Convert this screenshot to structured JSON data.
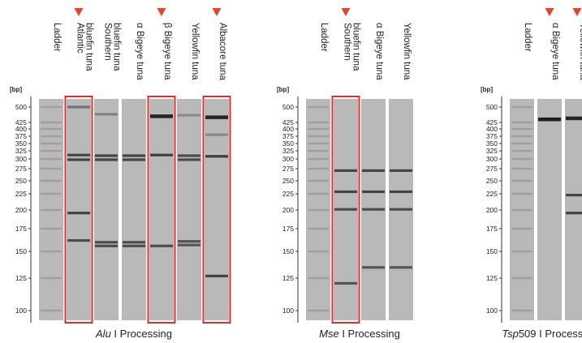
{
  "unit_label": "[bp]",
  "marker_color": "#e8432a",
  "highlight_color": "#e02d2d",
  "gel_color": "#b9b9b9",
  "band_color": "#1e1e1e",
  "ladder": [
    100,
    125,
    150,
    175,
    200,
    225,
    250,
    275,
    300,
    325,
    350,
    375,
    400,
    425,
    500
  ],
  "ticks": [
    {
      "label": "500",
      "bp": 500
    },
    {
      "label": "425",
      "bp": 425
    },
    {
      "label": "400",
      "bp": 400
    },
    {
      "label": "375",
      "bp": 375
    },
    {
      "label": "350",
      "bp": 350
    },
    {
      "label": "325",
      "bp": 325
    },
    {
      "label": "300",
      "bp": 300
    },
    {
      "label": "275",
      "bp": 275
    },
    {
      "label": "250",
      "bp": 250
    },
    {
      "label": "225",
      "bp": 225
    },
    {
      "label": "200",
      "bp": 200
    },
    {
      "label": "175",
      "bp": 175
    },
    {
      "label": "150",
      "bp": 150
    },
    {
      "label": "125",
      "bp": 125
    },
    {
      "label": "100",
      "bp": 100
    }
  ],
  "panels": [
    {
      "caption_enzyme": "Alu",
      "caption_rest": " I Processing",
      "lanes": [
        {
          "label_lines": [
            "Ladder"
          ],
          "ladder": true,
          "highlight": false,
          "marker": false,
          "bands": []
        },
        {
          "label_lines": [
            "Atlantic",
            "bluefin tuna"
          ],
          "ladder": false,
          "highlight": true,
          "marker": true,
          "bands": [
            {
              "bp": 500,
              "i": 0.45
            },
            {
              "bp": 312,
              "i": 0.75
            },
            {
              "bp": 298,
              "i": 0.75
            },
            {
              "bp": 196,
              "i": 0.75
            },
            {
              "bp": 162,
              "i": 0.7
            }
          ]
        },
        {
          "label_lines": [
            "Southern",
            "bluefin tuna"
          ],
          "ladder": false,
          "highlight": false,
          "marker": false,
          "bands": [
            {
              "bp": 465,
              "i": 0.35
            },
            {
              "bp": 310,
              "i": 0.75
            },
            {
              "bp": 298,
              "i": 0.75
            },
            {
              "bp": 160,
              "i": 0.7
            },
            {
              "bp": 156,
              "i": 0.7
            }
          ]
        },
        {
          "label_lines": [
            "α Bigeye tuna"
          ],
          "ladder": false,
          "highlight": false,
          "marker": false,
          "bands": [
            {
              "bp": 310,
              "i": 0.75
            },
            {
              "bp": 298,
              "i": 0.75
            },
            {
              "bp": 160,
              "i": 0.7
            },
            {
              "bp": 156,
              "i": 0.7
            }
          ]
        },
        {
          "label_lines": [
            "β Bigeye tuna"
          ],
          "ladder": false,
          "highlight": true,
          "marker": true,
          "bands": [
            {
              "bp": 455,
              "i": 0.95
            },
            {
              "bp": 312,
              "i": 0.8
            },
            {
              "bp": 156,
              "i": 0.7
            }
          ]
        },
        {
          "label_lines": [
            "Yellowfin tuna"
          ],
          "ladder": false,
          "highlight": false,
          "marker": false,
          "bands": [
            {
              "bp": 460,
              "i": 0.3
            },
            {
              "bp": 310,
              "i": 0.7
            },
            {
              "bp": 298,
              "i": 0.7
            },
            {
              "bp": 161,
              "i": 0.65
            },
            {
              "bp": 157,
              "i": 0.65
            }
          ]
        },
        {
          "label_lines": [
            "Albacore tuna"
          ],
          "ladder": false,
          "highlight": true,
          "marker": true,
          "bands": [
            {
              "bp": 450,
              "i": 0.95
            },
            {
              "bp": 380,
              "i": 0.3
            },
            {
              "bp": 308,
              "i": 0.8
            },
            {
              "bp": 127,
              "i": 0.75
            }
          ]
        }
      ]
    },
    {
      "caption_enzyme": "Mse",
      "caption_rest": " I Processing",
      "lanes": [
        {
          "label_lines": [
            "Ladder"
          ],
          "ladder": true,
          "highlight": false,
          "marker": false,
          "bands": []
        },
        {
          "label_lines": [
            "Southern",
            "bluefin tuna"
          ],
          "ladder": false,
          "highlight": true,
          "marker": true,
          "bands": [
            {
              "bp": 271,
              "i": 0.75
            },
            {
              "bp": 229,
              "i": 0.75
            },
            {
              "bp": 201,
              "i": 0.7
            },
            {
              "bp": 121,
              "i": 0.65
            }
          ]
        },
        {
          "label_lines": [
            "α Bigeye tuna"
          ],
          "ladder": false,
          "highlight": false,
          "marker": false,
          "bands": [
            {
              "bp": 271,
              "i": 0.75
            },
            {
              "bp": 229,
              "i": 0.75
            },
            {
              "bp": 201,
              "i": 0.7
            },
            {
              "bp": 135,
              "i": 0.65
            }
          ]
        },
        {
          "label_lines": [
            "Yellowfin tuna"
          ],
          "ladder": false,
          "highlight": false,
          "marker": false,
          "bands": [
            {
              "bp": 271,
              "i": 0.75
            },
            {
              "bp": 229,
              "i": 0.75
            },
            {
              "bp": 201,
              "i": 0.7
            },
            {
              "bp": 135,
              "i": 0.65
            }
          ]
        }
      ]
    },
    {
      "caption_enzyme": "Tsp",
      "caption_rest": "509 I Processing",
      "lanes": [
        {
          "label_lines": [
            "Ladder"
          ],
          "ladder": true,
          "highlight": false,
          "marker": false,
          "bands": []
        },
        {
          "label_lines": [
            "α Bigeye tuna"
          ],
          "ladder": false,
          "highlight": false,
          "marker": true,
          "bands": [
            {
              "bp": 440,
              "i": 1.0
            }
          ]
        },
        {
          "label_lines": [
            "Yellowfin tuna"
          ],
          "ladder": false,
          "highlight": false,
          "marker": true,
          "bands": [
            {
              "bp": 445,
              "i": 0.95
            },
            {
              "bp": 223,
              "i": 0.75
            },
            {
              "bp": 196,
              "i": 0.75
            }
          ]
        }
      ]
    }
  ]
}
